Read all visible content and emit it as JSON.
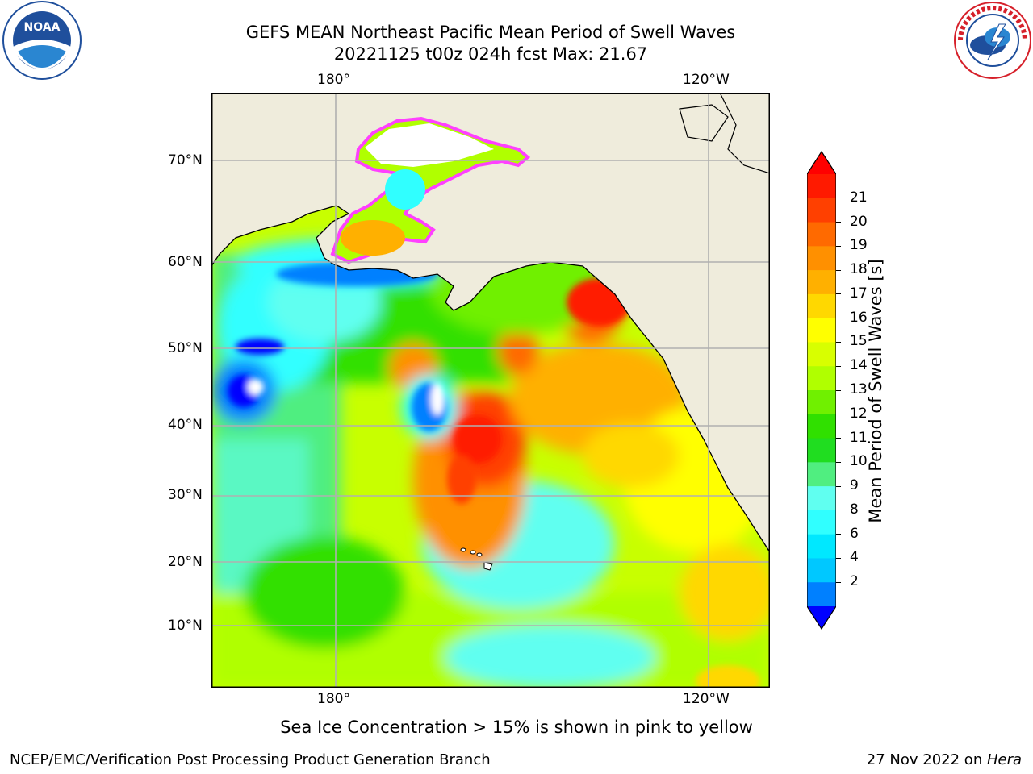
{
  "header": {
    "title_line1": "GEFS MEAN Northeast Pacific Mean Period of Swell Waves",
    "title_line2": "20221125 t00z 024h fcst   Max: 21.67"
  },
  "logos": {
    "left": {
      "text": "NOAA",
      "ring_text": "NATIONAL OCEANIC AND ATMOSPHERIC ADMINISTRATION · U.S. DEPARTMENT OF COMMERCE",
      "color": "#1f4f9c"
    },
    "right": {
      "ring_text": "NATIONAL WEATHER SERVICE",
      "color": "#d6202a"
    }
  },
  "map": {
    "lon_labels_top": [
      "180°",
      "120°W"
    ],
    "lon_labels_bottom": [
      "180°",
      "120°W"
    ],
    "lat_labels": [
      "70°N",
      "60°N",
      "50°N",
      "40°N",
      "30°N",
      "20°N",
      "10°N"
    ],
    "land_color": "#efecdc",
    "grid_color": "#b0b0b0"
  },
  "colorbar": {
    "label": "Mean Period of Swell Waves [s]",
    "ticks": [
      "21",
      "20",
      "19",
      "18",
      "17",
      "16",
      "15",
      "14",
      "13",
      "12",
      "11",
      "10",
      "9",
      "8",
      "6",
      "4",
      "2"
    ],
    "colors_top_to_bottom": [
      "#ff1a00",
      "#ff4000",
      "#ff6a00",
      "#ff9000",
      "#ffb000",
      "#ffd800",
      "#ffff00",
      "#d8ff00",
      "#b0ff00",
      "#70f000",
      "#30e000",
      "#20dd20",
      "#50ee80",
      "#60fff0",
      "#30ffff",
      "#00e8ff",
      "#00c8ff",
      "#0080ff"
    ],
    "extend_low_color": "#0000ff",
    "extend_high_color": "#ff0000"
  },
  "notes": {
    "sea_ice": "Sea Ice Concentration > 15% is shown in pink to yellow"
  },
  "footer": {
    "left": "NCEP/EMC/Verification Post Processing Product Generation Branch",
    "right_prefix": "27 Nov 2022 on ",
    "right_italic": "Hera"
  }
}
